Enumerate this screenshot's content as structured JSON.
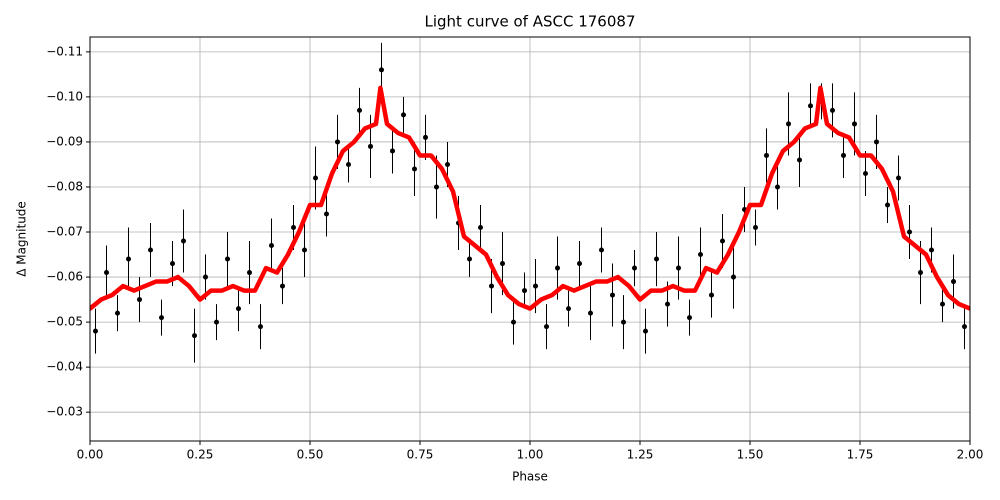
{
  "chart_data": {
    "type": "scatter",
    "title": "Light curve of ASCC 176087",
    "x_label": "Phase",
    "y_label": "Δ Magnitude",
    "xlim": [
      0,
      2
    ],
    "ylim": [
      -0.0236,
      -0.1133
    ],
    "xticks": [
      {
        "value": 0,
        "label": "0.00"
      },
      {
        "value": 0.25,
        "label": "0.25"
      },
      {
        "value": 0.5,
        "label": "0.50"
      },
      {
        "value": 0.75,
        "label": "0.75"
      },
      {
        "value": 1,
        "label": "1.00"
      },
      {
        "value": 1.25,
        "label": "1.25"
      },
      {
        "value": 1.5,
        "label": "1.50"
      },
      {
        "value": 1.75,
        "label": "1.75"
      },
      {
        "value": 2,
        "label": "2.00"
      }
    ],
    "yticks": [
      {
        "value": -0.03,
        "label": "−0.03"
      },
      {
        "value": -0.04,
        "label": "−0.04"
      },
      {
        "value": -0.05,
        "label": "−0.05"
      },
      {
        "value": -0.06,
        "label": "−0.06"
      },
      {
        "value": -0.07,
        "label": "−0.07"
      },
      {
        "value": -0.08,
        "label": "−0.08"
      },
      {
        "value": -0.09,
        "label": "−0.09"
      },
      {
        "value": -0.1,
        "label": "−0.10"
      },
      {
        "value": -0.11,
        "label": "−0.11"
      }
    ],
    "grid": true,
    "points": {
      "color": "#000000",
      "x": [
        0.0125,
        0.0375,
        0.0625,
        0.0875,
        0.1125,
        0.1375,
        0.1625,
        0.1875,
        0.2125,
        0.2375,
        0.2625,
        0.2875,
        0.3125,
        0.3375,
        0.3625,
        0.3875,
        0.4125,
        0.4375,
        0.4625,
        0.4875,
        0.5125,
        0.5375,
        0.5625,
        0.5875,
        0.6125,
        0.6375,
        0.6625,
        0.6875,
        0.7125,
        0.7375,
        0.7625,
        0.7875,
        0.8125,
        0.8375,
        0.8625,
        0.8875,
        0.9125,
        0.9375,
        0.9625,
        0.9875,
        1.0125,
        1.0375,
        1.0625,
        1.0875,
        1.1125,
        1.1375,
        1.1625,
        1.1875,
        1.2125,
        1.2375,
        1.2625,
        1.2875,
        1.3125,
        1.3375,
        1.3625,
        1.3875,
        1.4125,
        1.4375,
        1.4625,
        1.4875,
        1.5125,
        1.5375,
        1.5625,
        1.5875,
        1.6125,
        1.6375,
        1.6625,
        1.6875,
        1.7125,
        1.7375,
        1.7625,
        1.7875,
        1.8125,
        1.8375,
        1.8625,
        1.8875,
        1.9125,
        1.9375,
        1.9625,
        1.9875
      ],
      "values": [
        -0.048,
        -0.061,
        -0.052,
        -0.064,
        -0.055,
        -0.066,
        -0.051,
        -0.063,
        -0.068,
        -0.047,
        -0.06,
        -0.05,
        -0.064,
        -0.053,
        -0.061,
        -0.049,
        -0.067,
        -0.058,
        -0.071,
        -0.066,
        -0.082,
        -0.074,
        -0.09,
        -0.085,
        -0.097,
        -0.089,
        -0.106,
        -0.088,
        -0.096,
        -0.084,
        -0.091,
        -0.08,
        -0.085,
        -0.072,
        -0.064,
        -0.071,
        -0.058,
        -0.063,
        -0.05,
        -0.057,
        -0.058,
        -0.049,
        -0.062,
        -0.053,
        -0.063,
        -0.052,
        -0.066,
        -0.056,
        -0.05,
        -0.062,
        -0.048,
        -0.064,
        -0.054,
        -0.062,
        -0.051,
        -0.065,
        -0.056,
        -0.068,
        -0.06,
        -0.075,
        -0.071,
        -0.087,
        -0.08,
        -0.094,
        -0.086,
        -0.098,
        -0.099,
        -0.097,
        -0.087,
        -0.094,
        -0.083,
        -0.09,
        -0.076,
        -0.082,
        -0.07,
        -0.061,
        -0.066,
        -0.054,
        -0.059,
        -0.049
      ],
      "errors": [
        0.005,
        0.006,
        0.004,
        0.007,
        0.005,
        0.006,
        0.004,
        0.005,
        0.007,
        0.006,
        0.005,
        0.004,
        0.006,
        0.005,
        0.007,
        0.005,
        0.006,
        0.004,
        0.005,
        0.006,
        0.007,
        0.005,
        0.006,
        0.004,
        0.005,
        0.007,
        0.006,
        0.005,
        0.004,
        0.006,
        0.005,
        0.007,
        0.005,
        0.006,
        0.004,
        0.005,
        0.006,
        0.007,
        0.005,
        0.004,
        0.006,
        0.005,
        0.007,
        0.004,
        0.005,
        0.006,
        0.005,
        0.007,
        0.006,
        0.004,
        0.005,
        0.006,
        0.005,
        0.007,
        0.004,
        0.006,
        0.005,
        0.006,
        0.007,
        0.005,
        0.004,
        0.006,
        0.005,
        0.007,
        0.006,
        0.005,
        0.004,
        0.006,
        0.005,
        0.007,
        0.005,
        0.006,
        0.004,
        0.005,
        0.006,
        0.007,
        0.005,
        0.004,
        0.006,
        0.005
      ]
    },
    "series": [
      {
        "color": "#ff0000",
        "x": [
          0,
          0.025,
          0.05,
          0.075,
          0.1,
          0.125,
          0.15,
          0.175,
          0.2,
          0.225,
          0.25,
          0.275,
          0.3,
          0.325,
          0.35,
          0.375,
          0.4,
          0.425,
          0.45,
          0.475,
          0.5,
          0.525,
          0.55,
          0.575,
          0.6,
          0.625,
          0.65,
          0.66,
          0.675,
          0.7,
          0.725,
          0.75,
          0.775,
          0.8,
          0.825,
          0.85,
          0.875,
          0.9,
          0.925,
          0.95,
          0.975,
          1,
          1.025,
          1.05,
          1.075,
          1.1,
          1.125,
          1.15,
          1.175,
          1.2,
          1.225,
          1.25,
          1.275,
          1.3,
          1.325,
          1.35,
          1.375,
          1.4,
          1.425,
          1.45,
          1.475,
          1.5,
          1.525,
          1.55,
          1.575,
          1.6,
          1.625,
          1.65,
          1.66,
          1.675,
          1.7,
          1.725,
          1.75,
          1.775,
          1.8,
          1.825,
          1.85,
          1.875,
          1.9,
          1.925,
          1.95,
          1.975,
          2
        ],
        "values": [
          -0.053,
          -0.055,
          -0.056,
          -0.058,
          -0.057,
          -0.058,
          -0.059,
          -0.059,
          -0.06,
          -0.058,
          -0.055,
          -0.057,
          -0.057,
          -0.058,
          -0.057,
          -0.057,
          -0.062,
          -0.061,
          -0.065,
          -0.07,
          -0.076,
          -0.076,
          -0.083,
          -0.088,
          -0.09,
          -0.093,
          -0.094,
          -0.102,
          -0.094,
          -0.092,
          -0.091,
          -0.087,
          -0.087,
          -0.084,
          -0.079,
          -0.069,
          -0.067,
          -0.065,
          -0.06,
          -0.056,
          -0.054,
          -0.053,
          -0.055,
          -0.056,
          -0.058,
          -0.057,
          -0.058,
          -0.059,
          -0.059,
          -0.06,
          -0.058,
          -0.055,
          -0.057,
          -0.057,
          -0.058,
          -0.057,
          -0.057,
          -0.062,
          -0.061,
          -0.065,
          -0.07,
          -0.076,
          -0.076,
          -0.083,
          -0.088,
          -0.09,
          -0.093,
          -0.094,
          -0.102,
          -0.094,
          -0.092,
          -0.091,
          -0.087,
          -0.087,
          -0.084,
          -0.079,
          -0.069,
          -0.067,
          -0.065,
          -0.06,
          -0.056,
          -0.054,
          -0.053
        ]
      }
    ]
  }
}
